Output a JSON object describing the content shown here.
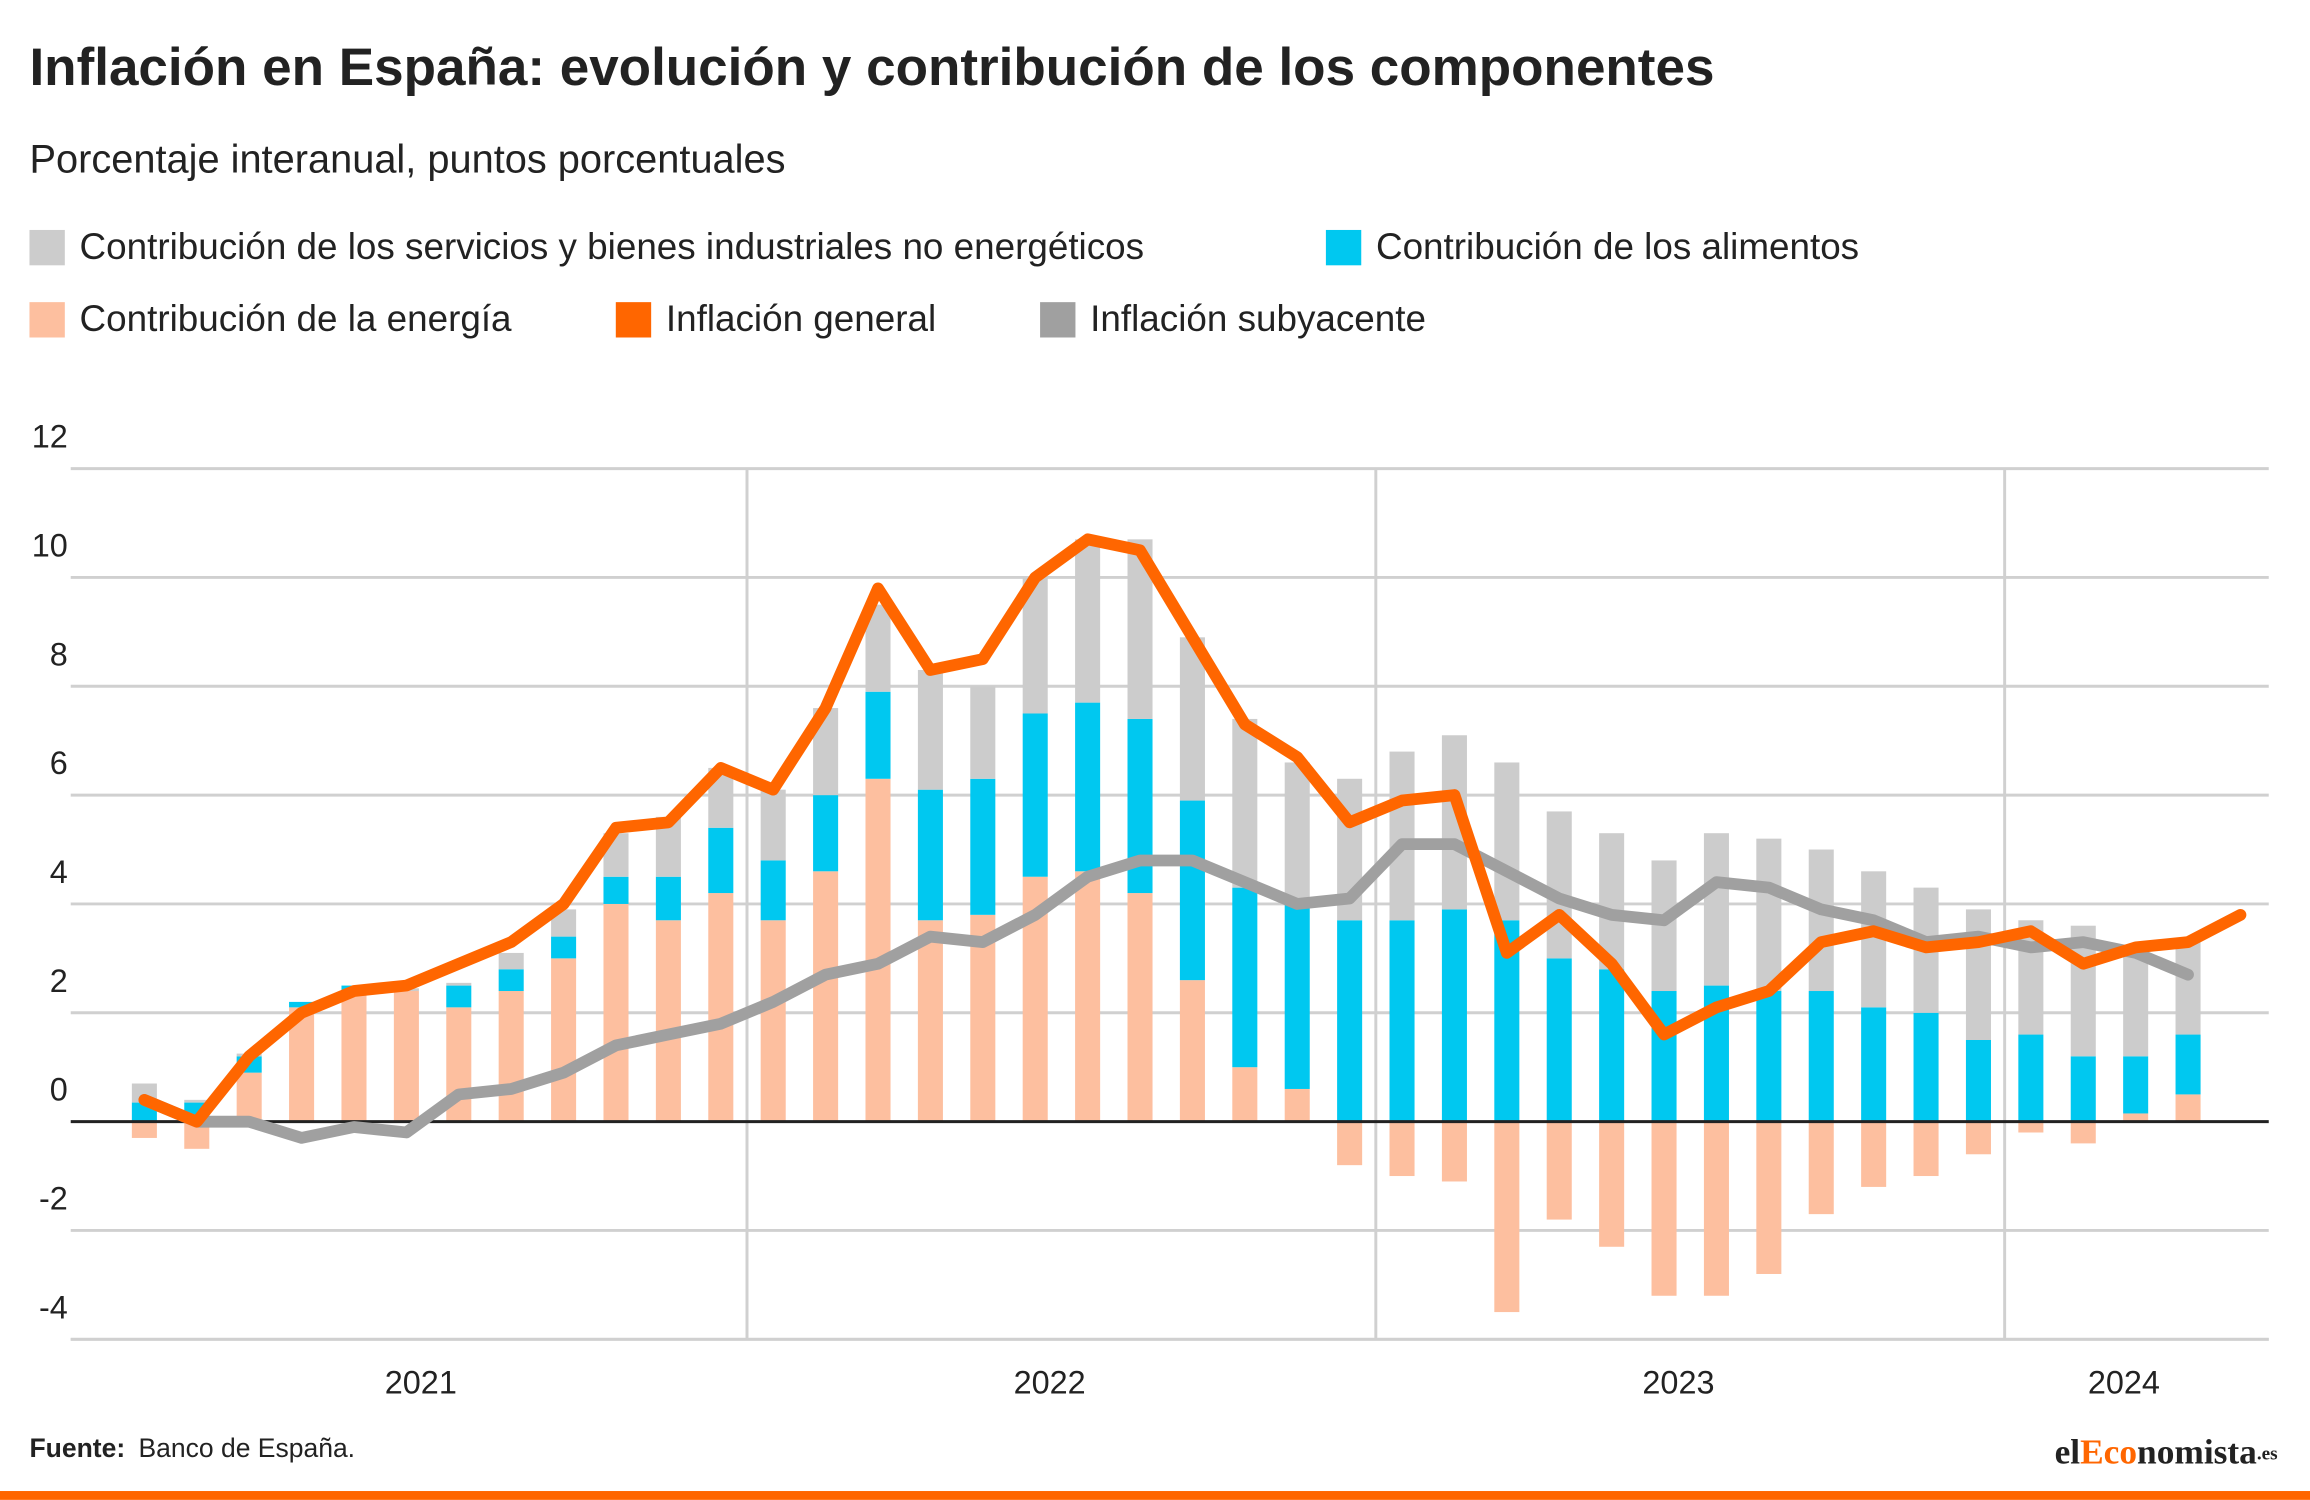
{
  "chart_data": {
    "type": "stacked-bar-line",
    "title": "Inflación en España: evolución y contribución de los componentes",
    "subtitle": "Porcentaje interanual, puntos porcentuales",
    "years": [
      "2021",
      "2022",
      "2023",
      "2024"
    ],
    "ylim": [
      -4,
      12
    ],
    "yticks": [
      12,
      10,
      8,
      6,
      4,
      2,
      0,
      -2,
      -4
    ],
    "grid": true,
    "series": [
      {
        "name": "Contribución de los servicios y bienes industriales no energéticos",
        "kind": "bar",
        "color": "#cccccc",
        "values": [
          0.35,
          0.05,
          0.05,
          0,
          0,
          0.05,
          0.05,
          0.3,
          0.5,
          0.8,
          1.1,
          1.1,
          1.3,
          1.6,
          1.6,
          2.2,
          1.7,
          2.5,
          3.0,
          3.3,
          3.0,
          3.1,
          2.6,
          2.6,
          3.1,
          3.2,
          2.9,
          2.7,
          2.5,
          2.4,
          2.8,
          2.8,
          2.6,
          2.5,
          2.3,
          2.4,
          2.1,
          2.4,
          2.0,
          1.7,
          null
        ]
      },
      {
        "name": "Contribución de los alimentos",
        "kind": "bar",
        "color": "#00c8f0",
        "values": [
          0.35,
          0.35,
          0.3,
          0.1,
          0.1,
          0,
          0.4,
          0.4,
          0.4,
          0.5,
          0.8,
          1.2,
          1.1,
          1.4,
          1.6,
          2.4,
          2.5,
          3.0,
          3.1,
          3.2,
          3.3,
          3.3,
          3.4,
          3.7,
          3.7,
          3.9,
          3.7,
          3.0,
          2.8,
          2.4,
          2.5,
          2.4,
          2.4,
          2.1,
          2.0,
          1.5,
          1.6,
          1.2,
          1.05,
          1.1,
          null
        ]
      },
      {
        "name": "Contribución de la energía",
        "kind": "bar",
        "color": "#fdbf9f",
        "values": [
          -0.3,
          -0.5,
          0.9,
          2.1,
          2.4,
          2.4,
          2.1,
          2.4,
          3.0,
          4.0,
          3.7,
          4.2,
          3.7,
          4.6,
          6.3,
          3.7,
          3.8,
          4.5,
          4.6,
          4.2,
          2.6,
          1.0,
          0.6,
          -0.8,
          -1.0,
          -1.1,
          -3.5,
          -1.8,
          -2.3,
          -3.2,
          -3.2,
          -2.8,
          -1.7,
          -1.2,
          -1.0,
          -0.6,
          -0.2,
          -0.4,
          0.15,
          0.5,
          null
        ]
      },
      {
        "name": "Inflación general",
        "kind": "line",
        "color": "#ff6600",
        "values": [
          0.4,
          0.0,
          1.2,
          2.0,
          2.4,
          2.5,
          2.9,
          3.3,
          4.0,
          5.4,
          5.5,
          6.5,
          6.1,
          7.6,
          9.8,
          8.3,
          8.5,
          10.0,
          10.7,
          10.5,
          8.9,
          7.3,
          6.7,
          5.5,
          5.9,
          6.0,
          3.1,
          3.8,
          2.9,
          1.6,
          2.1,
          2.4,
          3.3,
          3.5,
          3.2,
          3.3,
          3.5,
          2.9,
          3.2,
          3.3,
          3.8
        ]
      },
      {
        "name": "Inflación subyacente",
        "kind": "line",
        "color": "#a0a0a0",
        "values": [
          0.4,
          0.0,
          0.0,
          -0.3,
          -0.1,
          -0.2,
          0.5,
          0.6,
          0.9,
          1.4,
          1.6,
          1.8,
          2.2,
          2.7,
          2.9,
          3.4,
          3.3,
          3.8,
          4.5,
          4.8,
          4.8,
          4.4,
          4.0,
          4.1,
          5.1,
          5.1,
          4.6,
          4.1,
          3.8,
          3.7,
          4.4,
          4.3,
          3.9,
          3.7,
          3.3,
          3.4,
          3.2,
          3.3,
          3.1,
          2.7,
          null
        ]
      }
    ],
    "source_label": "Fuente:",
    "source": "Banco de España.",
    "brand": {
      "pre": "el",
      "accent": "Eco",
      "post": "nomista",
      "suffix": ".es"
    }
  }
}
